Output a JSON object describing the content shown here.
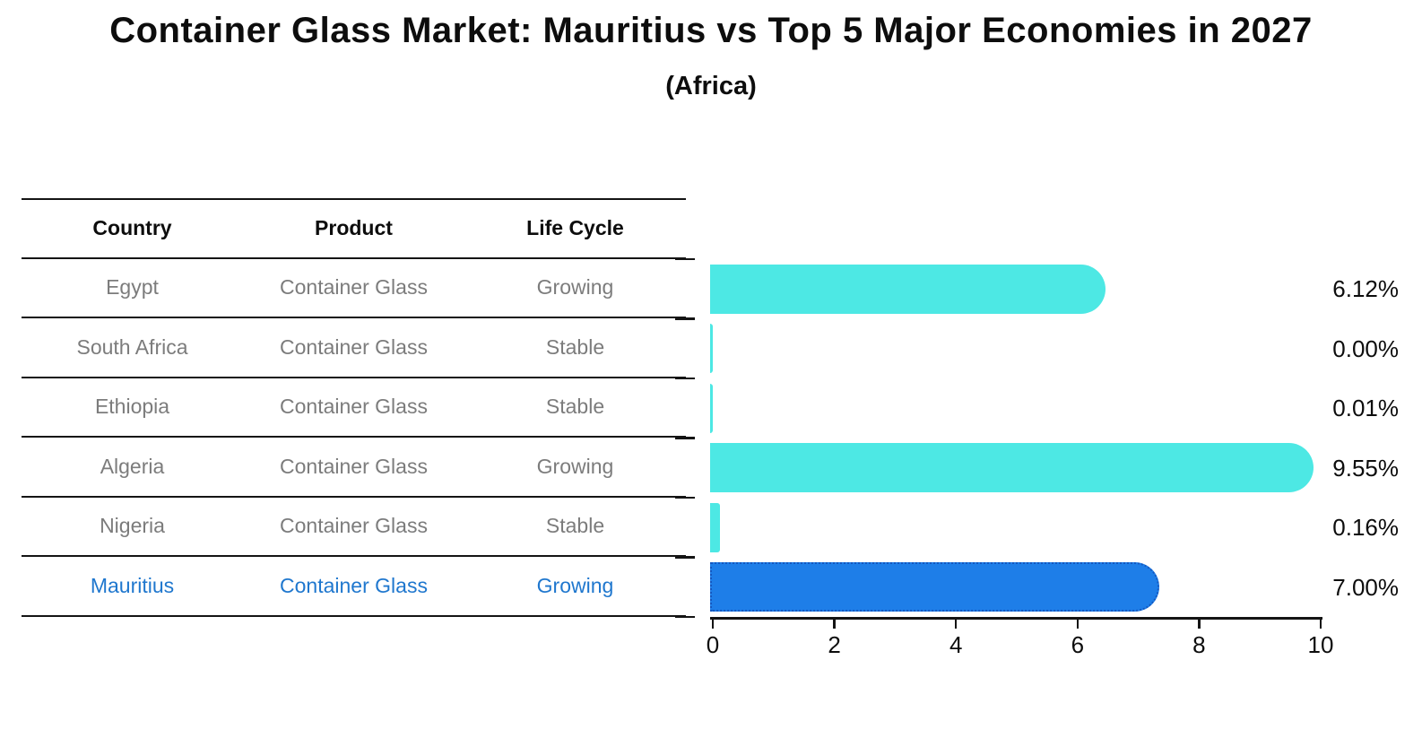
{
  "header": {
    "title": "Container Glass Market: Mauritius vs Top 5 Major Economies in 2027",
    "subtitle": "(Africa)"
  },
  "table": {
    "headers": [
      "Country",
      "Product",
      "Life Cycle"
    ],
    "highlight_text_color": "#1F77CE",
    "rows": [
      {
        "country": "Egypt",
        "product": "Container Glass",
        "life_cycle": "Growing",
        "highlight": false
      },
      {
        "country": "South Africa",
        "product": "Container Glass",
        "life_cycle": "Stable",
        "highlight": false
      },
      {
        "country": "Ethiopia",
        "product": "Container Glass",
        "life_cycle": "Stable",
        "highlight": false
      },
      {
        "country": "Algeria",
        "product": "Container Glass",
        "life_cycle": "Growing",
        "highlight": false
      },
      {
        "country": "Nigeria",
        "product": "Container Glass",
        "life_cycle": "Stable",
        "highlight": false
      },
      {
        "country": "Mauritius",
        "product": "Container Glass",
        "life_cycle": "Growing",
        "highlight": true
      }
    ]
  },
  "chart_data": {
    "type": "bar",
    "orientation": "horizontal",
    "title": "Container Glass Market: Mauritius vs Top 5 Major Economies in 2027 (Africa)",
    "categories": [
      "Egypt",
      "South Africa",
      "Ethiopia",
      "Algeria",
      "Nigeria",
      "Mauritius"
    ],
    "values": [
      6.12,
      0.0,
      0.01,
      9.55,
      0.16,
      7.0
    ],
    "value_labels": [
      "6.12%",
      "0.00%",
      "0.01%",
      "9.55%",
      "0.16%",
      "7.00%"
    ],
    "xlim": [
      0,
      10
    ],
    "xticks": [
      0,
      2,
      4,
      6,
      8,
      10
    ],
    "xtick_labels": [
      "0",
      "2",
      "4",
      "6",
      "8",
      "10"
    ],
    "grid": false,
    "legend": "none",
    "bar_color": "#4DE8E4",
    "highlight_index": 5,
    "highlight_bar_color": "#1E7EE8",
    "highlight_border_color": "#1458C0",
    "axis_color": "#141414",
    "value_label_color": "#000000"
  }
}
